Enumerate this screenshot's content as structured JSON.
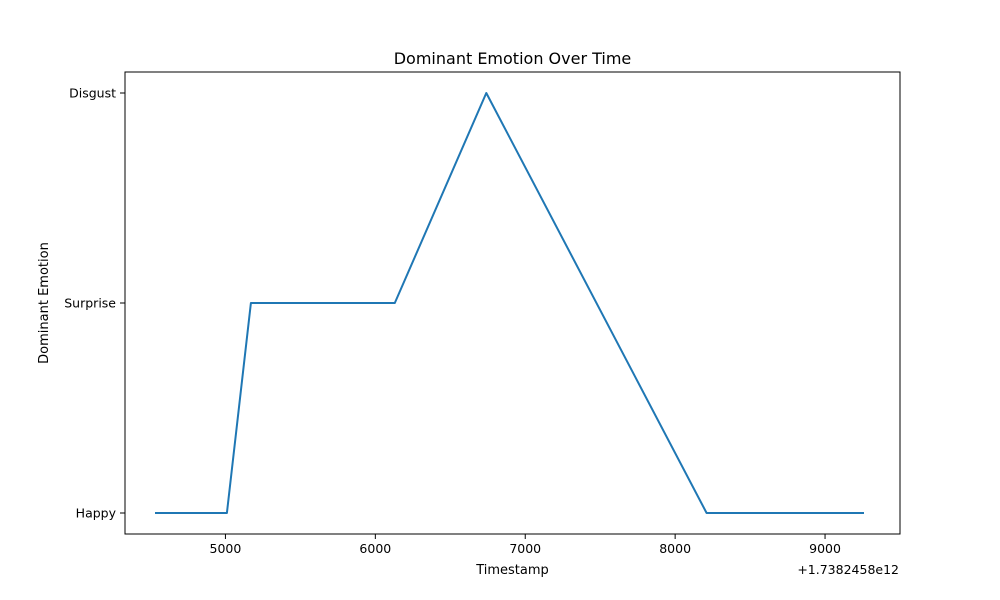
{
  "chart_data": {
    "type": "line",
    "title": "Dominant Emotion Over Time",
    "xlabel": "Timestamp",
    "ylabel": "Dominant Emotion",
    "x_offset_label": "+1.7382458e12",
    "x_ticks": [
      5000,
      6000,
      7000,
      8000,
      9000
    ],
    "xlim": [
      4330,
      9500
    ],
    "y_categories": [
      "Happy",
      "Surprise",
      "Disgust"
    ],
    "ylim": [
      -0.1,
      2.1
    ],
    "line_color": "#1f77b4",
    "grid": false,
    "series": [
      {
        "x": [
          4530,
          5010,
          5170,
          6130,
          6740,
          8210,
          9260
        ],
        "y": [
          "Happy",
          "Happy",
          "Surprise",
          "Surprise",
          "Disgust",
          "Happy",
          "Happy"
        ]
      }
    ]
  }
}
